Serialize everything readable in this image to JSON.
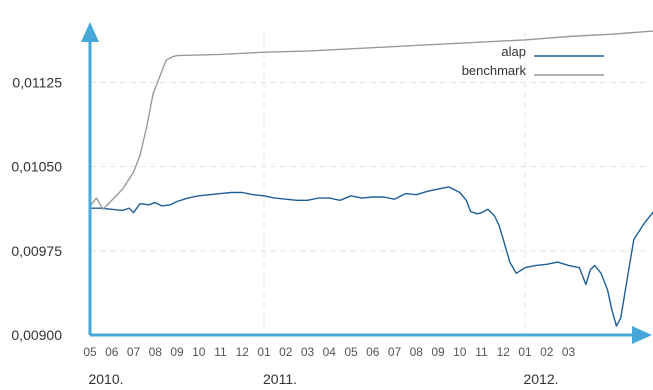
{
  "chart_data": {
    "type": "line",
    "title": "",
    "xlabel": "",
    "ylabel": "",
    "ylim": [
      0.009,
      0.0117
    ],
    "yticks": [
      "0,00900",
      "0,00975",
      "0,01050",
      "0,01125"
    ],
    "ytick_values": [
      0.009,
      0.00975,
      0.0105,
      0.01125
    ],
    "xticks": [
      "05",
      "06",
      "07",
      "08",
      "09",
      "10",
      "11",
      "12",
      "01",
      "02",
      "03",
      "04",
      "05",
      "06",
      "07",
      "08",
      "09",
      "10",
      "11",
      "12",
      "01",
      "02",
      "03"
    ],
    "year_labels": [
      {
        "label": "2010.",
        "month_index": 0
      },
      {
        "label": "2011.",
        "month_index": 8
      },
      {
        "label": "2012.",
        "month_index": 20
      }
    ],
    "legend_position": "top-right",
    "grid": true,
    "series": [
      {
        "name": "alap",
        "color": "#1f5f96",
        "points": [
          [
            0.0,
            0.01013
          ],
          [
            0.5,
            0.01013
          ],
          [
            1.0,
            0.01012
          ],
          [
            1.5,
            0.01011
          ],
          [
            1.8,
            0.01013
          ],
          [
            2.0,
            0.01009
          ],
          [
            2.3,
            0.01017
          ],
          [
            2.7,
            0.01016
          ],
          [
            3.0,
            0.01018
          ],
          [
            3.3,
            0.01015
          ],
          [
            3.7,
            0.01016
          ],
          [
            4.0,
            0.01019
          ],
          [
            4.5,
            0.01022
          ],
          [
            5.0,
            0.01024
          ],
          [
            5.5,
            0.01025
          ],
          [
            6.0,
            0.01026
          ],
          [
            6.5,
            0.01027
          ],
          [
            7.0,
            0.01027
          ],
          [
            7.5,
            0.01025
          ],
          [
            8.0,
            0.01024
          ],
          [
            8.5,
            0.01022
          ],
          [
            9.0,
            0.01021
          ],
          [
            9.5,
            0.0102
          ],
          [
            10.0,
            0.0102
          ],
          [
            10.5,
            0.01022
          ],
          [
            11.0,
            0.01022
          ],
          [
            11.5,
            0.0102
          ],
          [
            12.0,
            0.01024
          ],
          [
            12.5,
            0.01022
          ],
          [
            13.0,
            0.01023
          ],
          [
            13.5,
            0.01023
          ],
          [
            14.0,
            0.01021
          ],
          [
            14.5,
            0.01026
          ],
          [
            15.0,
            0.01025
          ],
          [
            15.5,
            0.01028
          ],
          [
            16.0,
            0.0103
          ],
          [
            16.5,
            0.01032
          ],
          [
            16.8,
            0.01029
          ],
          [
            17.0,
            0.01027
          ],
          [
            17.3,
            0.0102
          ],
          [
            17.5,
            0.0101
          ],
          [
            17.8,
            0.01008
          ],
          [
            18.0,
            0.01009
          ],
          [
            18.3,
            0.01012
          ],
          [
            18.6,
            0.01006
          ],
          [
            18.8,
            0.00998
          ],
          [
            19.0,
            0.00985
          ],
          [
            19.3,
            0.00965
          ],
          [
            19.6,
            0.00955
          ],
          [
            20.0,
            0.0096
          ],
          [
            20.5,
            0.00962
          ],
          [
            21.0,
            0.00963
          ],
          [
            21.5,
            0.00965
          ],
          [
            22.0,
            0.00962
          ],
          [
            22.5,
            0.0096
          ],
          [
            22.8,
            0.00945
          ],
          [
            23.0,
            0.00958
          ],
          [
            23.2,
            0.00962
          ],
          [
            23.5,
            0.00955
          ],
          [
            23.8,
            0.0094
          ],
          [
            24.0,
            0.00922
          ],
          [
            24.2,
            0.00908
          ],
          [
            24.4,
            0.00915
          ],
          [
            24.7,
            0.0095
          ],
          [
            25.0,
            0.00985
          ],
          [
            25.5,
            0.01
          ],
          [
            26.0,
            0.01012
          ],
          [
            26.5,
            0.0102
          ],
          [
            27.0,
            0.0103
          ],
          [
            27.5,
            0.01036
          ],
          [
            28.0,
            0.0104
          ],
          [
            28.5,
            0.01045
          ],
          [
            28.8,
            0.0105
          ],
          [
            29.2,
            0.01044
          ]
        ]
      },
      {
        "name": "benchmark",
        "color": "#9a9a9a",
        "points": [
          [
            0.0,
            0.01015
          ],
          [
            0.3,
            0.01022
          ],
          [
            0.6,
            0.01012
          ],
          [
            1.0,
            0.0102
          ],
          [
            1.5,
            0.0103
          ],
          [
            2.0,
            0.01045
          ],
          [
            2.3,
            0.0106
          ],
          [
            2.6,
            0.01085
          ],
          [
            2.9,
            0.01115
          ],
          [
            3.2,
            0.0113
          ],
          [
            3.5,
            0.01145
          ],
          [
            3.8,
            0.01148
          ],
          [
            4.0,
            0.01149
          ],
          [
            6.0,
            0.0115
          ],
          [
            8.0,
            0.01152
          ],
          [
            10.0,
            0.01153
          ],
          [
            12.0,
            0.01155
          ],
          [
            14.0,
            0.01157
          ],
          [
            16.0,
            0.01159
          ],
          [
            18.0,
            0.01161
          ],
          [
            20.0,
            0.01163
          ],
          [
            22.0,
            0.01166
          ],
          [
            24.0,
            0.01168
          ],
          [
            26.0,
            0.01171
          ],
          [
            28.0,
            0.01174
          ],
          [
            29.2,
            0.01176
          ]
        ]
      }
    ],
    "axis_color": "#46a8d8",
    "grid_color": "#e4e4e4"
  }
}
